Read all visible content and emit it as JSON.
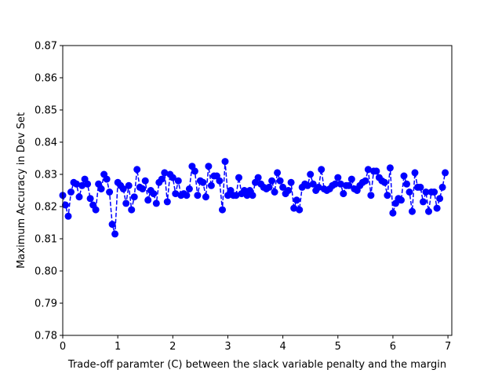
{
  "chart_data": {
    "type": "line",
    "title": "",
    "xlabel": "Trade-off paramter (C) between the slack variable penalty and the margin",
    "ylabel": "Maximum Accuracy in Dev Set",
    "xlim": [
      0,
      7.07
    ],
    "ylim": [
      0.78,
      0.87
    ],
    "x_ticks": [
      0,
      1,
      2,
      3,
      4,
      5,
      6,
      7
    ],
    "x_tick_labels": [
      "0",
      "1",
      "2",
      "3",
      "4",
      "5",
      "6",
      "7"
    ],
    "y_ticks": [
      0.78,
      0.79,
      0.8,
      0.81,
      0.82,
      0.83,
      0.84,
      0.85,
      0.86,
      0.87
    ],
    "y_tick_labels": [
      "0.78",
      "0.79",
      "0.80",
      "0.81",
      "0.82",
      "0.83",
      "0.84",
      "0.85",
      "0.86",
      "0.87"
    ],
    "grid": false,
    "line_style": "dashed",
    "marker": "circle",
    "color": "#0000ff",
    "series": [
      {
        "x": [
          0.0,
          0.05,
          0.1,
          0.15,
          0.2,
          0.25,
          0.3,
          0.35,
          0.4,
          0.45,
          0.5,
          0.55,
          0.6,
          0.65,
          0.7,
          0.75,
          0.8,
          0.85,
          0.9,
          0.95,
          1.0,
          1.05,
          1.1,
          1.15,
          1.2,
          1.25,
          1.3,
          1.35,
          1.4,
          1.45,
          1.5,
          1.55,
          1.6,
          1.65,
          1.7,
          1.75,
          1.8,
          1.85,
          1.9,
          1.95,
          2.0,
          2.05,
          2.1,
          2.15,
          2.2,
          2.25,
          2.3,
          2.35,
          2.4,
          2.45,
          2.5,
          2.55,
          2.6,
          2.65,
          2.7,
          2.75,
          2.8,
          2.85,
          2.9,
          2.95,
          3.0,
          3.05,
          3.1,
          3.15,
          3.2,
          3.25,
          3.3,
          3.35,
          3.4,
          3.45,
          3.5,
          3.55,
          3.6,
          3.65,
          3.7,
          3.75,
          3.8,
          3.85,
          3.9,
          3.95,
          4.0,
          4.05,
          4.1,
          4.15,
          4.2,
          4.25,
          4.3,
          4.35,
          4.4,
          4.45,
          4.5,
          4.55,
          4.6,
          4.65,
          4.7,
          4.75,
          4.8,
          4.85,
          4.9,
          4.95,
          5.0,
          5.05,
          5.1,
          5.15,
          5.2,
          5.25,
          5.3,
          5.35,
          5.4,
          5.45,
          5.5,
          5.55,
          5.6,
          5.65,
          5.7,
          5.75,
          5.8,
          5.85,
          5.9,
          5.95,
          6.0,
          6.05,
          6.1,
          6.15,
          6.2,
          6.25,
          6.3,
          6.35,
          6.4,
          6.45,
          6.5,
          6.55,
          6.6,
          6.65,
          6.7,
          6.75,
          6.8,
          6.85,
          6.9,
          6.95
        ],
        "y": [
          0.8235,
          0.8205,
          0.817,
          0.8245,
          0.8275,
          0.827,
          0.823,
          0.8265,
          0.8285,
          0.827,
          0.8225,
          0.8205,
          0.819,
          0.827,
          0.8255,
          0.83,
          0.8285,
          0.8245,
          0.8145,
          0.8115,
          0.8275,
          0.8265,
          0.8255,
          0.821,
          0.8265,
          0.819,
          0.823,
          0.8315,
          0.826,
          0.8255,
          0.828,
          0.822,
          0.825,
          0.824,
          0.821,
          0.8275,
          0.8285,
          0.8305,
          0.8215,
          0.83,
          0.829,
          0.824,
          0.828,
          0.8235,
          0.824,
          0.8235,
          0.8255,
          0.8325,
          0.831,
          0.8235,
          0.828,
          0.8275,
          0.823,
          0.8325,
          0.8265,
          0.8295,
          0.8295,
          0.828,
          0.819,
          0.834,
          0.8235,
          0.825,
          0.8235,
          0.8235,
          0.829,
          0.824,
          0.825,
          0.8235,
          0.825,
          0.8235,
          0.8275,
          0.829,
          0.827,
          0.826,
          0.8255,
          0.826,
          0.828,
          0.8245,
          0.8305,
          0.828,
          0.826,
          0.824,
          0.825,
          0.8275,
          0.8195,
          0.822,
          0.819,
          0.826,
          0.827,
          0.8265,
          0.83,
          0.827,
          0.825,
          0.826,
          0.8315,
          0.8255,
          0.825,
          0.8255,
          0.8265,
          0.827,
          0.829,
          0.827,
          0.824,
          0.8265,
          0.8265,
          0.8285,
          0.8255,
          0.825,
          0.8265,
          0.8275,
          0.828,
          0.8315,
          0.8235,
          0.831,
          0.831,
          0.829,
          0.828,
          0.8275,
          0.8235,
          0.832,
          0.818,
          0.821,
          0.8225,
          0.822,
          0.8295,
          0.827,
          0.8245,
          0.8185,
          0.8305,
          0.826,
          0.826,
          0.8215,
          0.8245,
          0.8185,
          0.8245,
          0.8245,
          0.8195,
          0.8225,
          0.826,
          0.8305
        ]
      }
    ]
  }
}
